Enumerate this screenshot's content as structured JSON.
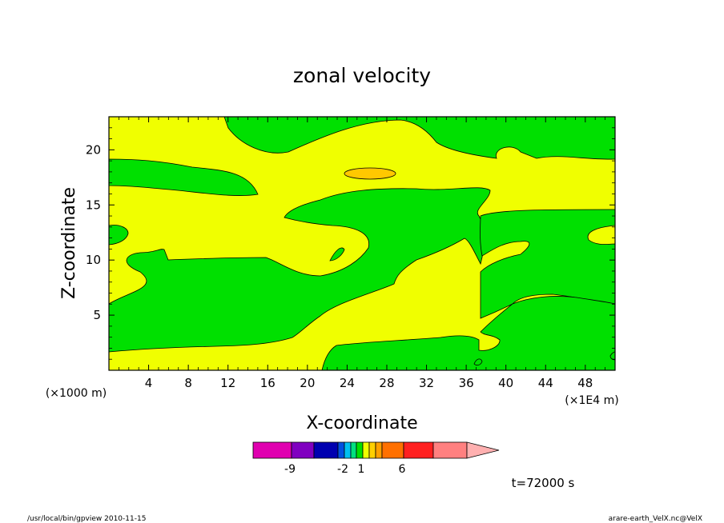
{
  "chart_data": {
    "type": "heatmap",
    "title": "zonal velocity",
    "xlabel": "X-coordinate",
    "ylabel": "Z-coordinate",
    "x_unit": "(×1E4 m)",
    "y_unit": "(×1000 m)",
    "xlim": [
      0,
      51
    ],
    "ylim": [
      0,
      23
    ],
    "x_ticks": [
      "4",
      "8",
      "12",
      "16",
      "20",
      "24",
      "28",
      "32",
      "36",
      "40",
      "44",
      "48"
    ],
    "y_ticks": [
      "5",
      "10",
      "15",
      "20"
    ],
    "colorbar": {
      "colors": [
        "#e000b0",
        "#8000c0",
        "#0000b0",
        "#0050e0",
        "#00c0f0",
        "#00e080",
        "#00e000",
        "#f0ff00",
        "#ffd000",
        "#ffa000",
        "#ff7000",
        "#ff2020",
        "#ff8080",
        "#ffb0b0"
      ],
      "tick_labels": [
        "-9",
        "-2",
        "1",
        "6"
      ]
    },
    "regions": {
      "background_value_color": "#f0ff00",
      "positive_core_color": "#ffc800",
      "negative_band_color": "#00e000"
    },
    "annotation_time": "t=72000 s"
  },
  "footer": {
    "left": "/usr/local/bin/gpview   2010-11-15",
    "right": "arare-earth_VelX.nc@VelX"
  }
}
